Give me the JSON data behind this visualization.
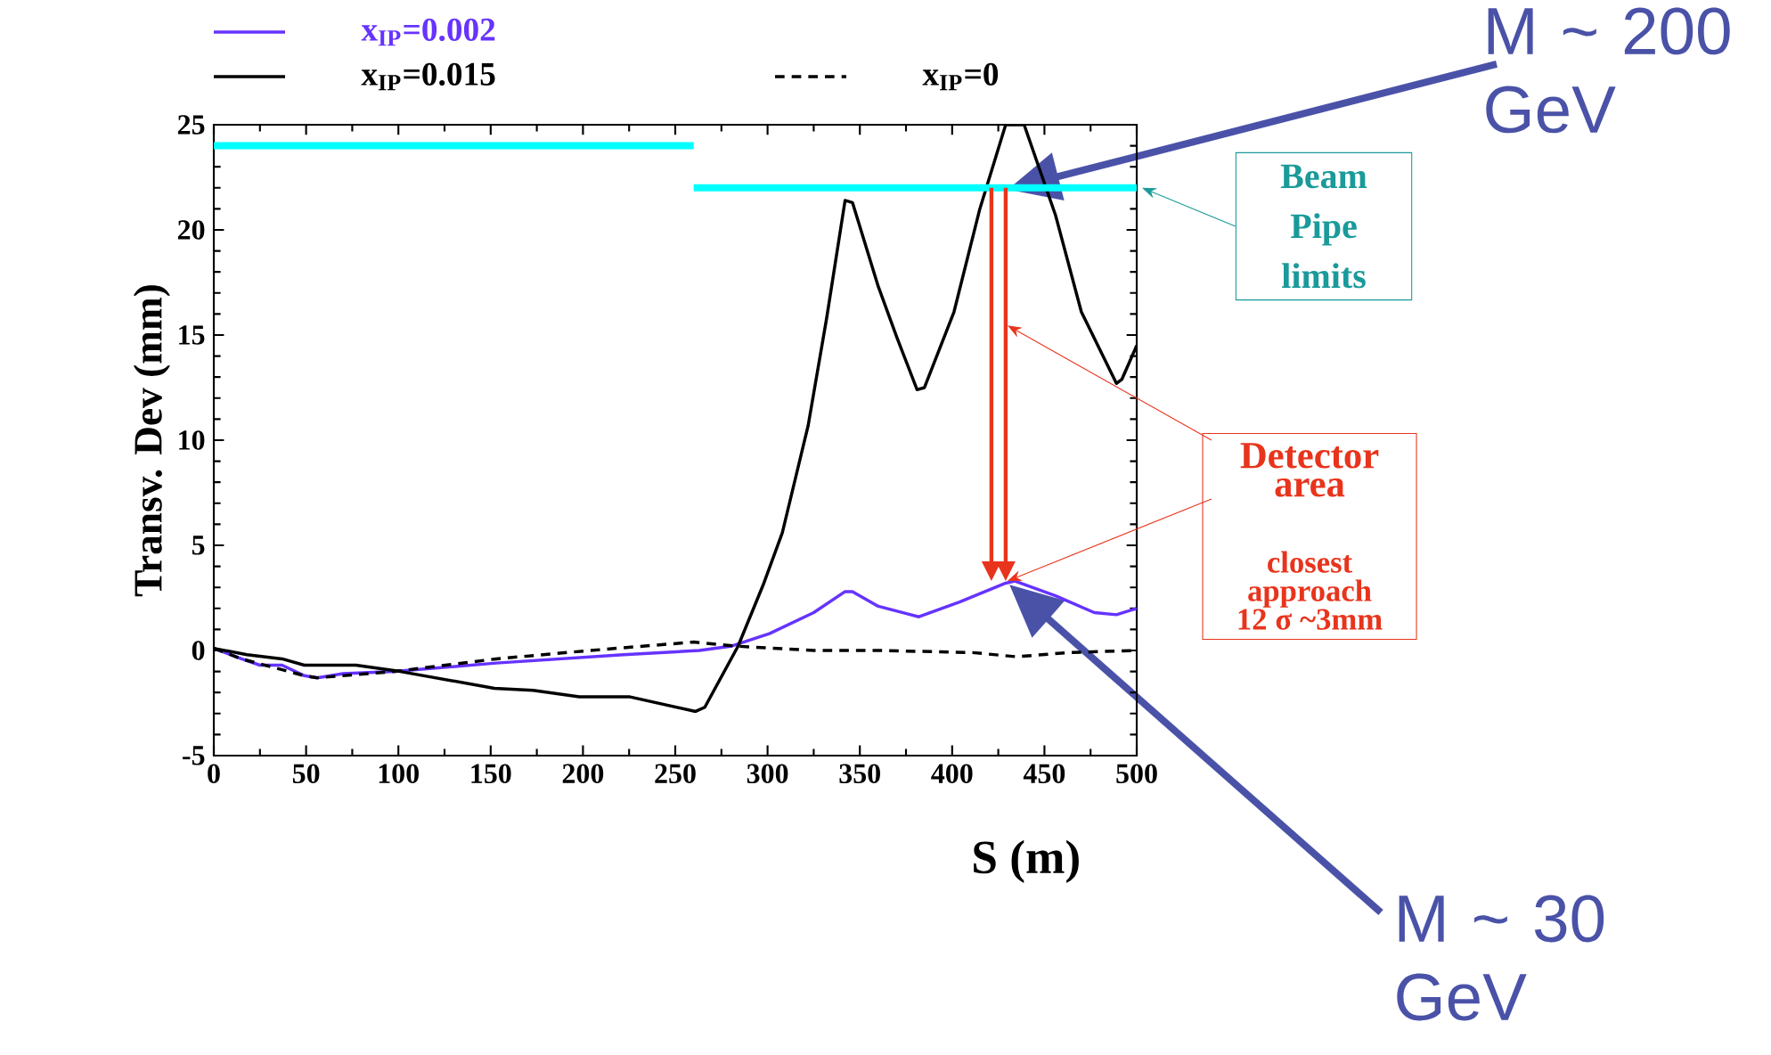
{
  "chart_data": {
    "type": "line",
    "xlabel": "S (m)",
    "ylabel": "Transv. Dev (mm)",
    "xlim": [
      0,
      500
    ],
    "ylim": [
      -5,
      25
    ],
    "xticks": [
      0,
      50,
      100,
      150,
      200,
      250,
      300,
      350,
      400,
      450,
      500
    ],
    "yticks": [
      -5,
      0,
      5,
      10,
      15,
      20,
      25
    ],
    "legend": "top",
    "grid": false,
    "marker": "none",
    "series": [
      {
        "name": "x$_{IP}$=0.002",
        "color": "#6633ff",
        "line_style": "solid",
        "x": [
          0,
          15,
          25,
          37,
          49,
          56,
          70,
          98,
          153,
          222,
          263,
          280,
          301,
          325,
          342,
          346,
          360,
          382,
          404,
          429,
          434,
          456,
          477,
          489,
          500
        ],
        "values": [
          0.1,
          -0.4,
          -0.7,
          -0.7,
          -1.2,
          -1.3,
          -1.1,
          -1.0,
          -0.6,
          -0.2,
          0.0,
          0.2,
          0.8,
          1.8,
          2.8,
          2.8,
          2.1,
          1.6,
          2.3,
          3.2,
          3.3,
          2.6,
          1.8,
          1.7,
          2.0
        ]
      },
      {
        "name": "x$_{IP}$=0.015",
        "color": "#000000",
        "line_style": "solid",
        "x": [
          0,
          18,
          37,
          49,
          77,
          101,
          152,
          173,
          198,
          225,
          261,
          266,
          284,
          298,
          308,
          322,
          332,
          342,
          346,
          360,
          370,
          381,
          385,
          401,
          415,
          429,
          439,
          456,
          470,
          489,
          492,
          500
        ],
        "values": [
          0.1,
          -0.2,
          -0.4,
          -0.7,
          -0.7,
          -1.0,
          -1.8,
          -1.9,
          -2.2,
          -2.2,
          -2.9,
          -2.7,
          0.2,
          3.2,
          5.6,
          10.7,
          15.8,
          21.4,
          21.3,
          17.3,
          14.9,
          12.4,
          12.5,
          16.1,
          21.0,
          25,
          25,
          20.7,
          16.1,
          12.7,
          12.9,
          14.5
        ]
      },
      {
        "name": "x$_{IP}$=0",
        "color": "#000000",
        "line_style": "dashed",
        "x": [
          0,
          15,
          49,
          56,
          98,
          153,
          204,
          260,
          284,
          325,
          360,
          411,
          435,
          463,
          500
        ],
        "values": [
          0.1,
          -0.4,
          -1.2,
          -1.3,
          -1.0,
          -0.4,
          0.0,
          0.4,
          0.2,
          0.0,
          0.0,
          -0.1,
          -0.3,
          -0.1,
          0.0
        ]
      },
      {
        "color": "#00ffff",
        "line_style": "solid",
        "x": [
          0,
          260
        ],
        "values": [
          24,
          24
        ]
      },
      {
        "color": "#00ffff",
        "line_style": "solid",
        "x": [
          260,
          500
        ],
        "values": [
          22,
          22
        ]
      }
    ],
    "annotations": [
      {
        "text": "Beam Pipe limits",
        "x": 500,
        "y": 22
      },
      {
        "text": "Detector area",
        "x": 429,
        "y": 3.3
      },
      "closest approach 12 σ ~3mm",
      "M ~ 200 GeV",
      "M ~ 30 GeV"
    ]
  }
}
